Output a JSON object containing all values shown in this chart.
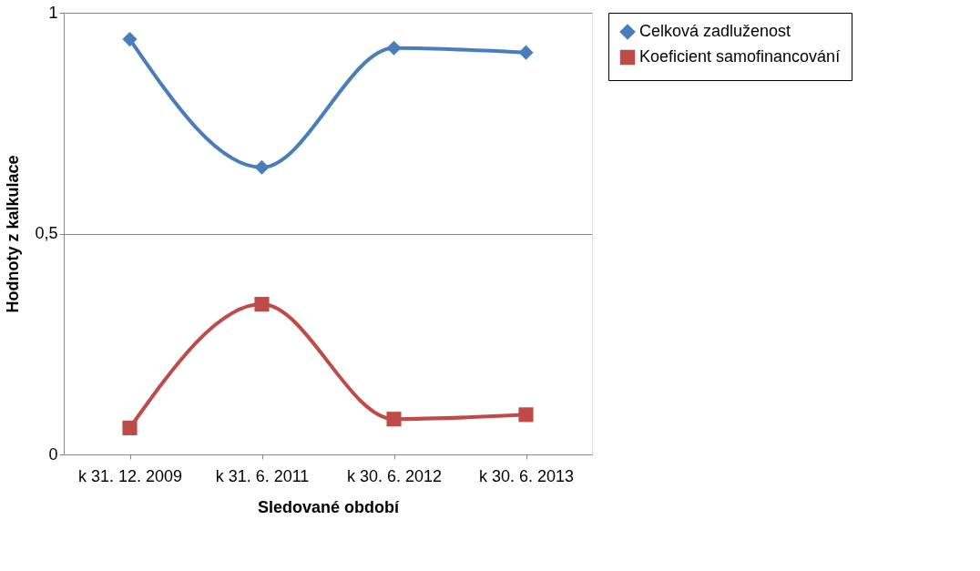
{
  "chart_data": {
    "type": "line",
    "xlabel": "Sledované období",
    "ylabel": "Hodnoty z kalkulace",
    "categories": [
      "k 31. 12. 2009",
      "k 31. 6. 2011",
      "k 30. 6. 2012",
      "k 30. 6. 2013"
    ],
    "series": [
      {
        "name": "Celková zadluženost",
        "color": "#4a7ebb",
        "marker": "diamond",
        "values": [
          0.94,
          0.65,
          0.92,
          0.91
        ]
      },
      {
        "name": "Koeficient samofinancování",
        "color": "#be4b48",
        "marker": "square",
        "values": [
          0.06,
          0.34,
          0.08,
          0.09
        ]
      }
    ],
    "ylim": [
      0,
      1
    ],
    "yticks": [
      0,
      {
        "value": 0.5,
        "label": "0,5"
      },
      1
    ],
    "grid": "y",
    "legend": "right",
    "line_style": "solid"
  }
}
